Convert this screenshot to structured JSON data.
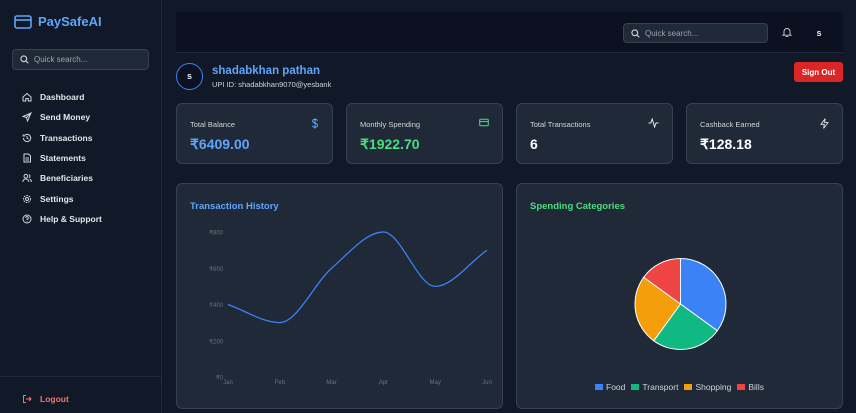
{
  "app": {
    "name": "PaySafeAI"
  },
  "sidebar": {
    "search_placeholder": "Quick search...",
    "items": [
      {
        "label": "Dashboard",
        "icon": "home-icon"
      },
      {
        "label": "Send Money",
        "icon": "send-icon"
      },
      {
        "label": "Transactions",
        "icon": "history-icon"
      },
      {
        "label": "Statements",
        "icon": "document-icon"
      },
      {
        "label": "Beneficiaries",
        "icon": "users-icon"
      },
      {
        "label": "Settings",
        "icon": "gear-icon"
      },
      {
        "label": "Help & Support",
        "icon": "help-icon"
      }
    ],
    "logout_label": "Logout"
  },
  "topbar": {
    "search_placeholder": "Quick search...",
    "avatar_initial": "s"
  },
  "profile": {
    "avatar_initial": "s",
    "name": "shadabkhan pathan",
    "upi": "UPI ID: shadabkhan9070@yesbank",
    "signout_label": "Sign Out"
  },
  "stats": [
    {
      "label": "Total Balance",
      "value": "₹6409.00",
      "icon": "dollar-icon",
      "color": "#60a5fa"
    },
    {
      "label": "Monthly Spending",
      "value": "₹1922.70",
      "icon": "credit-card-icon",
      "color": "#4ade80"
    },
    {
      "label": "Total Transactions",
      "value": "6",
      "icon": "activity-icon",
      "color": "#ffffff"
    },
    {
      "label": "Cashback Earned",
      "value": "₹128.18",
      "icon": "zap-icon",
      "color": "#ffffff"
    }
  ],
  "colors": {
    "accent": "#60a5fa",
    "green": "#4ade80",
    "danger": "#dc2626"
  },
  "chart_data": [
    {
      "type": "line",
      "title": "Transaction History",
      "categories": [
        "Jan",
        "Feb",
        "Mar",
        "Apr",
        "May",
        "Jun"
      ],
      "series": [
        {
          "values": [
            400,
            300,
            600,
            800,
            500,
            700
          ]
        }
      ],
      "yticks": [
        0,
        200,
        400,
        600,
        800
      ],
      "ytick_labels": [
        "₹0",
        "₹200",
        "₹400",
        "₹600",
        "₹800"
      ],
      "ylim": [
        0,
        800
      ],
      "grid": false,
      "color": "#3b82f6"
    },
    {
      "type": "pie",
      "title": "Spending Categories",
      "categories": [
        "Food",
        "Transport",
        "Shopping",
        "Bills"
      ],
      "values": [
        35,
        25,
        25,
        15
      ],
      "colors": [
        "#3b82f6",
        "#10b981",
        "#f59e0b",
        "#ef4444"
      ],
      "legend": "bottom"
    }
  ]
}
